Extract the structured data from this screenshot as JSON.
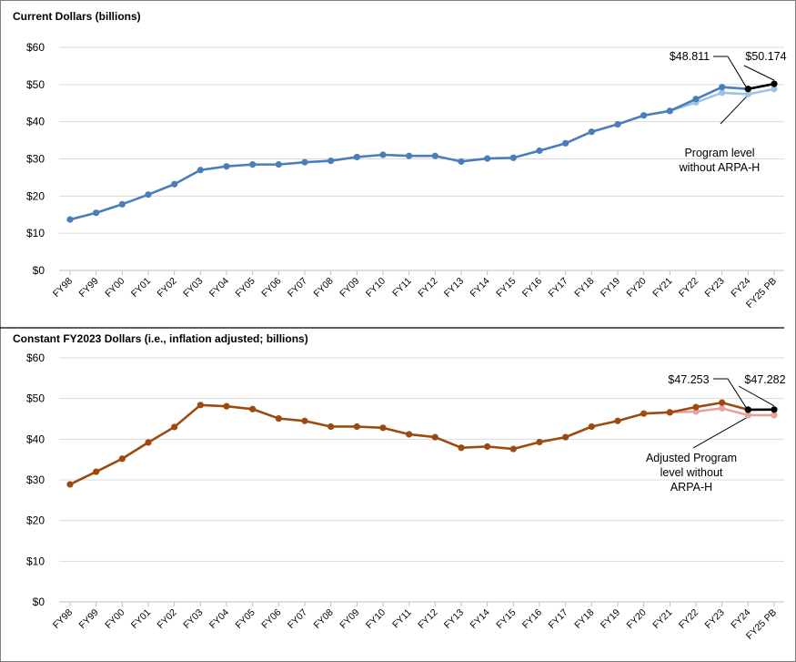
{
  "chart_data": [
    {
      "type": "line",
      "title": "Current Dollars (billions)",
      "xlabel": "",
      "ylabel": "",
      "ylim": [
        0,
        60
      ],
      "ytick_labels": [
        "$0",
        "$10",
        "$20",
        "$30",
        "$40",
        "$50",
        "$60"
      ],
      "grid": true,
      "categories": [
        "FY98",
        "FY99",
        "FY00",
        "FY01",
        "FY02",
        "FY03",
        "FY04",
        "FY05",
        "FY06",
        "FY07",
        "FY08",
        "FY09",
        "FY10",
        "FY11",
        "FY12",
        "FY13",
        "FY14",
        "FY15",
        "FY16",
        "FY17",
        "FY18",
        "FY19",
        "FY20",
        "FY21",
        "FY22",
        "FY23",
        "FY24",
        "FY25 PB"
      ],
      "series": [
        {
          "color": "#4a7ebb",
          "values": [
            13.7,
            15.5,
            17.8,
            20.4,
            23.2,
            27.0,
            28.0,
            28.5,
            28.5,
            29.1,
            29.5,
            30.5,
            31.1,
            30.8,
            30.8,
            29.3,
            30.1,
            30.3,
            32.2,
            34.2,
            37.3,
            39.3,
            41.7,
            42.9,
            46.1,
            49.3,
            48.8,
            null
          ]
        },
        {
          "color": "#9dc3e6",
          "values": [
            null,
            null,
            null,
            null,
            null,
            null,
            null,
            null,
            null,
            null,
            null,
            null,
            null,
            null,
            null,
            null,
            null,
            null,
            null,
            null,
            null,
            null,
            null,
            42.9,
            45.2,
            47.8,
            47.4,
            48.8
          ]
        },
        {
          "color": "#000000",
          "values": [
            null,
            null,
            null,
            null,
            null,
            null,
            null,
            null,
            null,
            null,
            null,
            null,
            null,
            null,
            null,
            null,
            null,
            null,
            null,
            null,
            null,
            null,
            null,
            null,
            null,
            null,
            48.811,
            50.174
          ]
        }
      ],
      "annotations": [
        {
          "text": "$48.811"
        },
        {
          "text": "$50.174"
        },
        {
          "text": "Program level without ARPA-H"
        }
      ]
    },
    {
      "type": "line",
      "title": "Constant FY2023 Dollars (i.e., inflation adjusted; billions)",
      "xlabel": "",
      "ylabel": "",
      "ylim": [
        0,
        60
      ],
      "ytick_labels": [
        "$0",
        "$10",
        "$20",
        "$30",
        "$40",
        "$50",
        "$60"
      ],
      "grid": true,
      "categories": [
        "FY98",
        "FY99",
        "FY00",
        "FY01",
        "FY02",
        "FY03",
        "FY04",
        "FY05",
        "FY06",
        "FY07",
        "FY08",
        "FY09",
        "FY10",
        "FY11",
        "FY12",
        "FY13",
        "FY14",
        "FY15",
        "FY16",
        "FY17",
        "FY18",
        "FY19",
        "FY20",
        "FY21",
        "FY22",
        "FY23",
        "FY24",
        "FY25 PB"
      ],
      "series": [
        {
          "color": "#9c4a0f",
          "values": [
            28.9,
            32.0,
            35.2,
            39.2,
            43.0,
            48.4,
            48.1,
            47.4,
            45.1,
            44.5,
            43.1,
            43.1,
            42.8,
            41.2,
            40.5,
            37.9,
            38.2,
            37.6,
            39.3,
            40.5,
            43.1,
            44.5,
            46.3,
            46.6,
            47.9,
            49.0,
            47.253,
            null
          ]
        },
        {
          "color": "#e6a2a2",
          "values": [
            null,
            null,
            null,
            null,
            null,
            null,
            null,
            null,
            null,
            null,
            null,
            null,
            null,
            null,
            null,
            null,
            null,
            null,
            null,
            null,
            null,
            null,
            null,
            46.6,
            46.8,
            47.6,
            45.9,
            45.9
          ]
        },
        {
          "color": "#000000",
          "values": [
            null,
            null,
            null,
            null,
            null,
            null,
            null,
            null,
            null,
            null,
            null,
            null,
            null,
            null,
            null,
            null,
            null,
            null,
            null,
            null,
            null,
            null,
            null,
            null,
            null,
            null,
            47.253,
            47.282
          ]
        }
      ],
      "annotations": [
        {
          "text": "$47.253"
        },
        {
          "text": "$47.282"
        },
        {
          "text": "Adjusted Program level without ARPA-H"
        }
      ]
    }
  ]
}
